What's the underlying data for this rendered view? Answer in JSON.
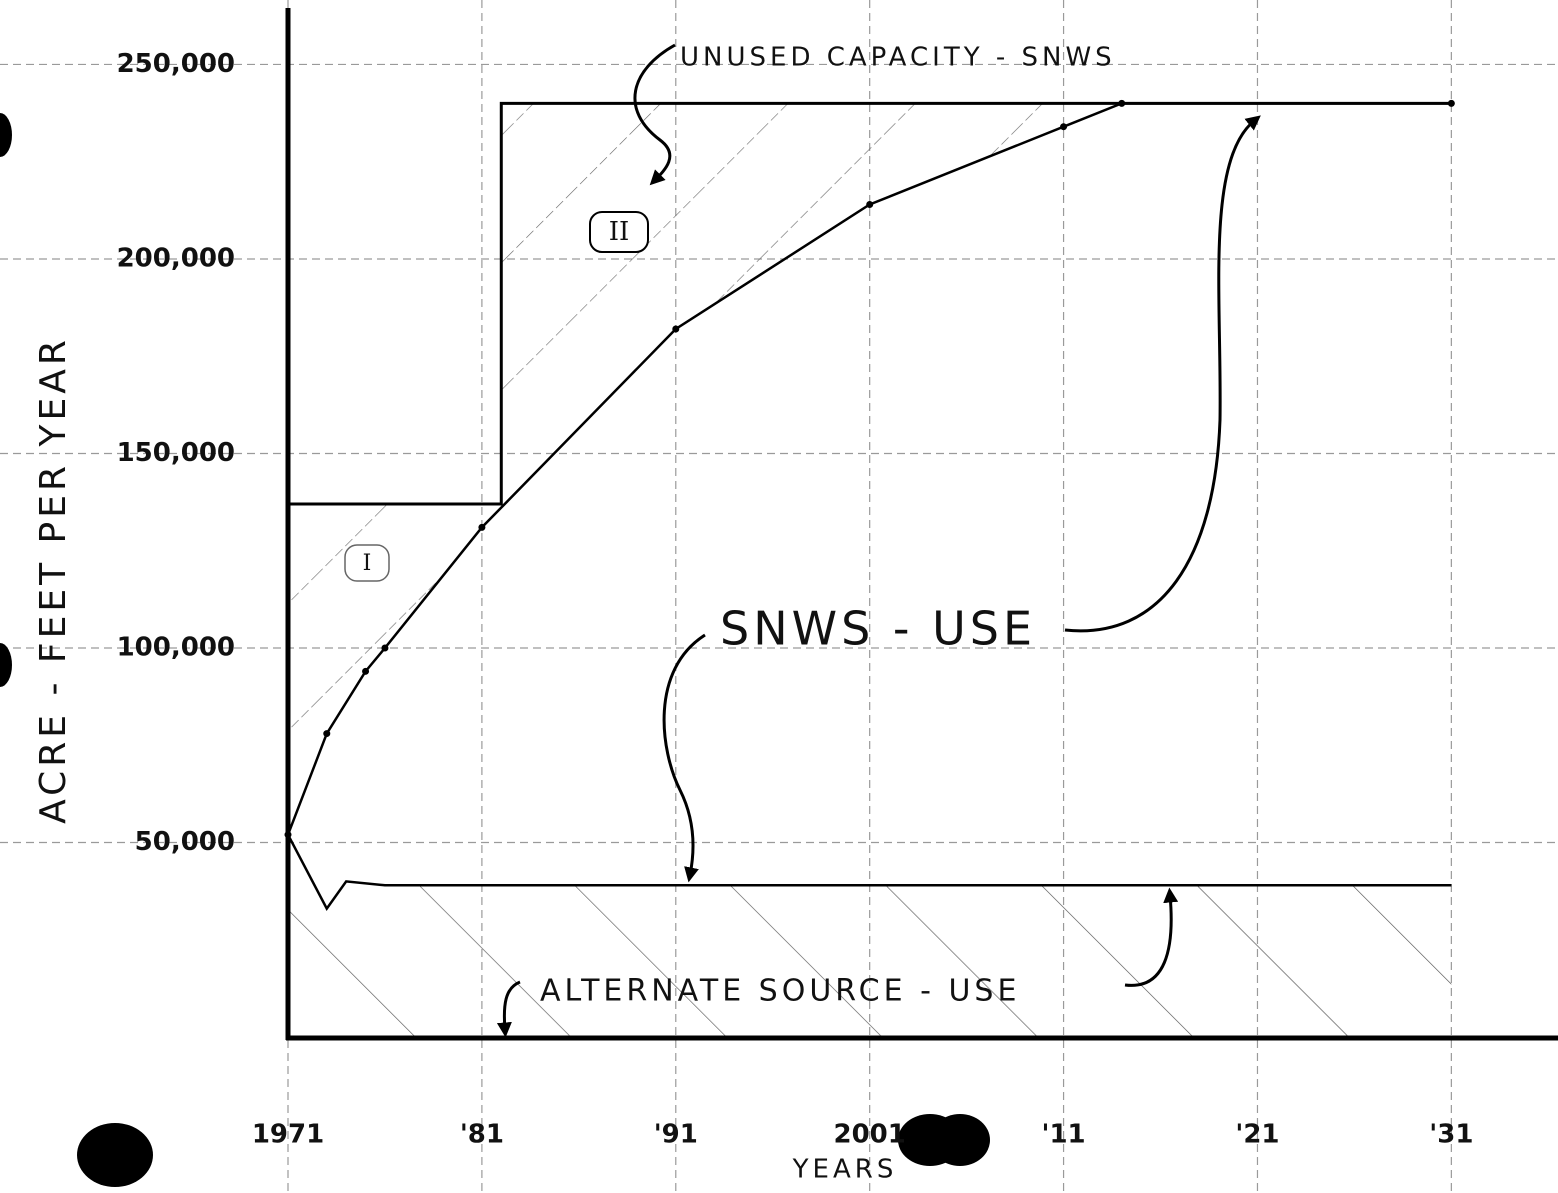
{
  "chart_data": {
    "type": "line",
    "annotations": {
      "unused_capacity": "UNUSED CAPACITY - SNWS",
      "snws_use": "SNWS - USE",
      "alternate_use": "ALTERNATE SOURCE - USE",
      "region_1": "I",
      "region_2": "II"
    },
    "xlabel": "YEARS",
    "ylabel": "ACRE - FEET PER YEAR",
    "xlim": [
      1971,
      2036.5
    ],
    "ylim": [
      0,
      264000
    ],
    "xticks": [
      {
        "value": 1971,
        "label": "1971"
      },
      {
        "value": 1981,
        "label": "'81"
      },
      {
        "value": 1991,
        "label": "'91"
      },
      2001,
      {
        "value": 2011,
        "label": "'11"
      },
      {
        "value": 2021,
        "label": "'21"
      },
      {
        "value": 2031,
        "label": "'31"
      }
    ],
    "yticks": [
      {
        "value": 50000,
        "label": "50,000"
      },
      {
        "value": 100000,
        "label": "100,000"
      },
      {
        "value": 150000,
        "label": "150,000"
      },
      {
        "value": 200000,
        "label": "200,000"
      },
      {
        "value": 250000,
        "label": "250,000"
      }
    ],
    "grid": true,
    "series": [
      {
        "color": "#000000",
        "x": [
          1971,
          1973,
          1975,
          1976,
          1981,
          1991,
          2001,
          2011,
          2014,
          2031
        ],
        "values": [
          52000,
          78000,
          94000,
          100000,
          131000,
          182000,
          214000,
          234000,
          240000,
          240000
        ]
      },
      {
        "color": "#000000",
        "x": [
          1971,
          1973,
          1974,
          1976,
          2031
        ],
        "values": [
          52000,
          33000,
          40000,
          39000,
          39000
        ]
      },
      {
        "color": "#000000",
        "x": [
          1971,
          1982,
          1982,
          2031
        ],
        "values": [
          137000,
          137000,
          240000,
          240000
        ]
      }
    ]
  }
}
